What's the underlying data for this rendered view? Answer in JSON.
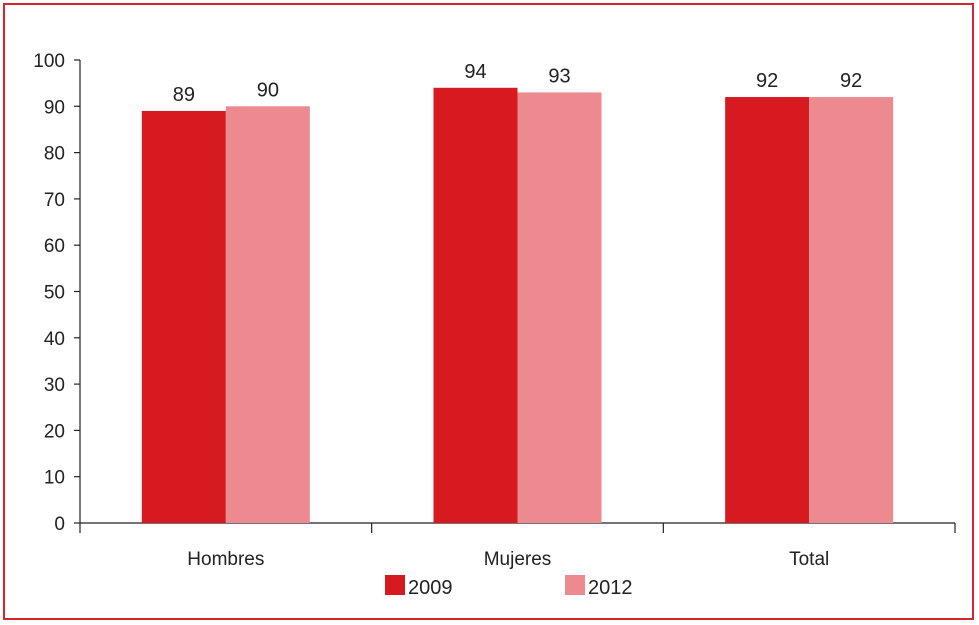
{
  "chart_data": {
    "type": "bar",
    "categories": [
      "Hombres",
      "Mujeres",
      "Total"
    ],
    "series": [
      {
        "name": "2009",
        "values": [
          89,
          94,
          92
        ],
        "labels": [
          "89",
          "94",
          "92"
        ],
        "color": "#d71920"
      },
      {
        "name": "2012",
        "values": [
          90,
          93,
          92
        ],
        "labels": [
          "90",
          "93",
          "92"
        ],
        "color": "#ec8a8f"
      }
    ],
    "ylim": [
      0,
      100
    ],
    "yticks": [
      "0",
      "10",
      "20",
      "30",
      "40",
      "50",
      "60",
      "70",
      "80",
      "90",
      "100"
    ],
    "grid": false,
    "legend_position": "bottom",
    "frame_color": "#d7262b"
  }
}
